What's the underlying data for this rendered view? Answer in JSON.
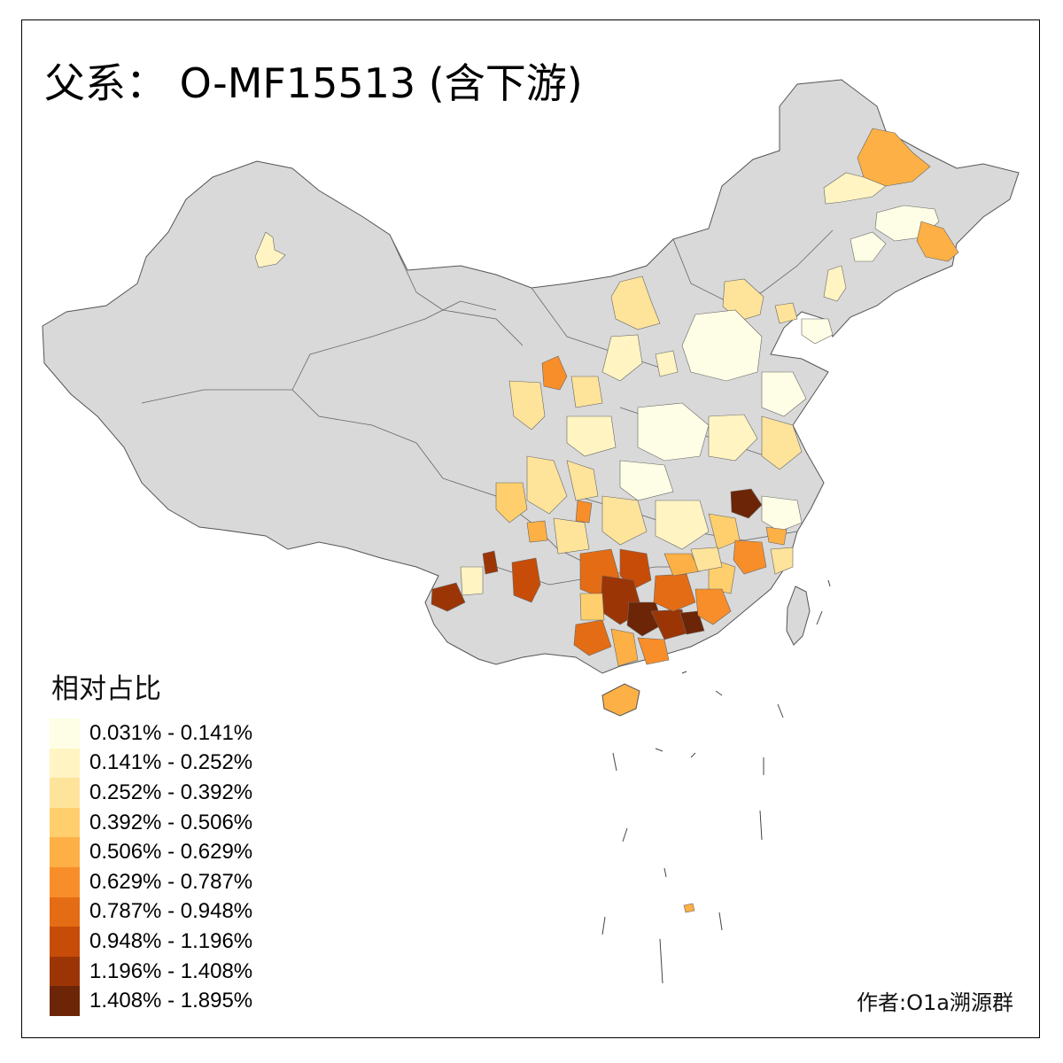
{
  "title": "父系： O-MF15513 (含下游)",
  "legend": {
    "title": "相对占比",
    "items": [
      {
        "label": "0.031% - 0.141%",
        "color": "#fefee6"
      },
      {
        "label": "0.141% - 0.252%",
        "color": "#fff4c2"
      },
      {
        "label": "0.252% - 0.392%",
        "color": "#fee39a"
      },
      {
        "label": "0.392% - 0.506%",
        "color": "#fecf6c"
      },
      {
        "label": "0.506% - 0.629%",
        "color": "#fdb045"
      },
      {
        "label": "0.629% - 0.787%",
        "color": "#f88e2a"
      },
      {
        "label": "0.787% - 0.948%",
        "color": "#e46c14"
      },
      {
        "label": "0.948% - 1.196%",
        "color": "#c74c08"
      },
      {
        "label": "1.196% - 1.408%",
        "color": "#9c3506"
      },
      {
        "label": "1.408% - 1.895%",
        "color": "#6c2506"
      }
    ]
  },
  "credit": "作者:O1a溯源群",
  "colors": {
    "no_data": "#d9d9d9",
    "border": "#555555",
    "frame": "#000000"
  }
}
